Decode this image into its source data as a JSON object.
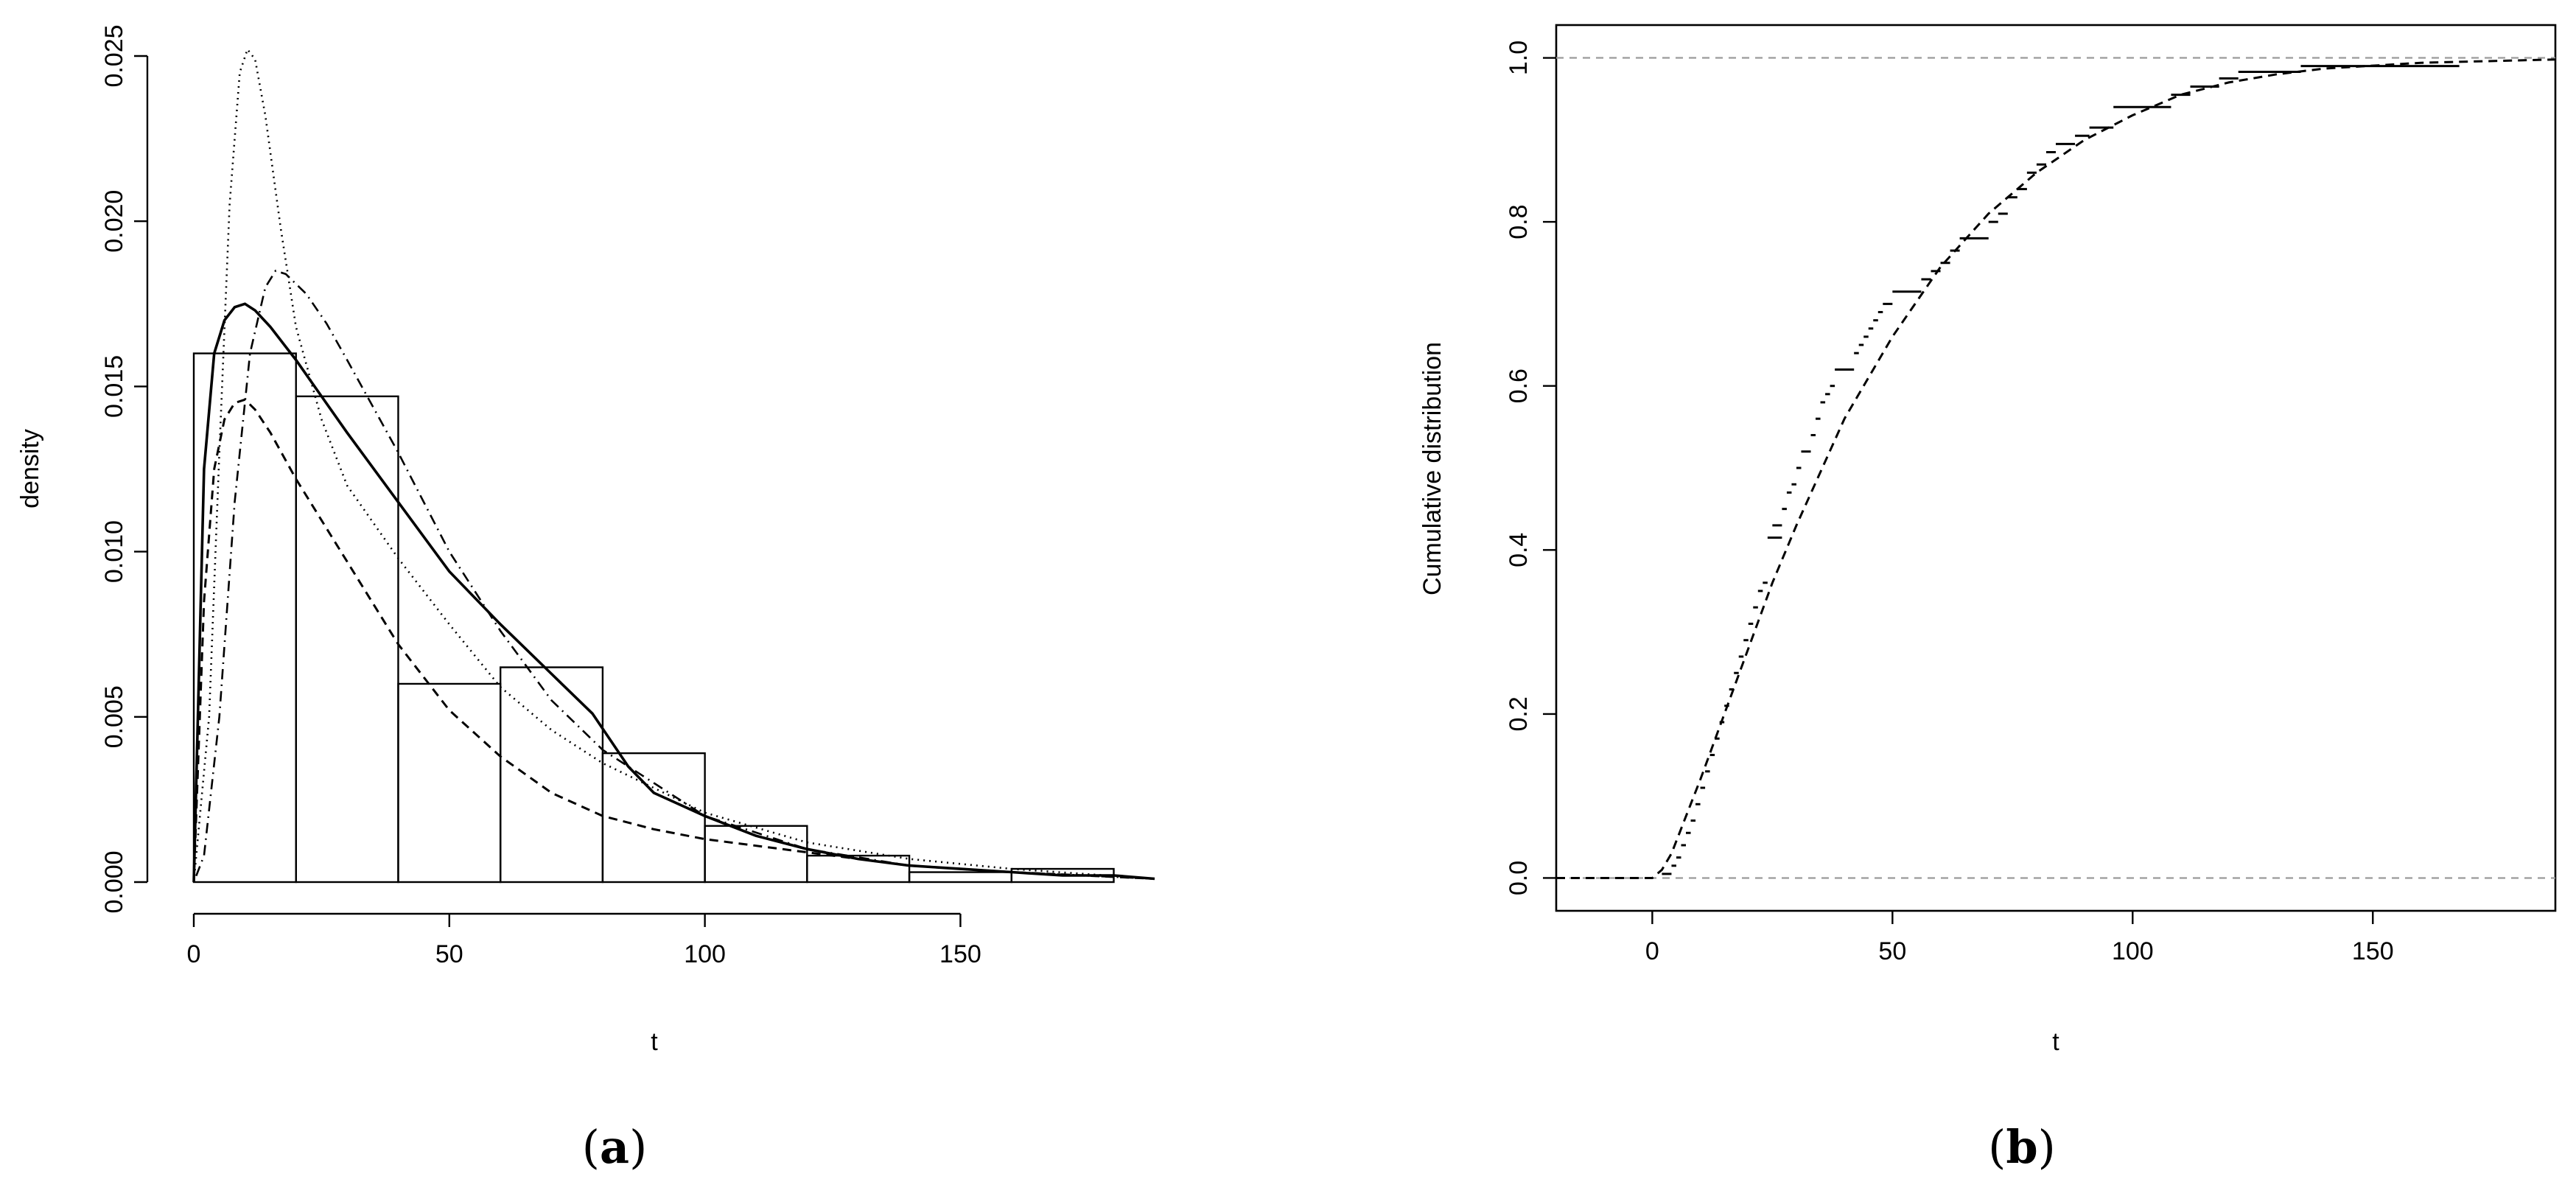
{
  "chart_data": [
    {
      "panel": "a",
      "type": "bar",
      "panel_label": "a",
      "xlabel": "t",
      "ylabel": "density",
      "xlim": [
        0,
        188
      ],
      "ylim": [
        0,
        0.025
      ],
      "x_ticks": [
        0,
        50,
        100,
        150
      ],
      "y_ticks": [
        0.0,
        0.005,
        0.01,
        0.015,
        0.02,
        0.025
      ],
      "y_tick_labels": [
        "0.000",
        "0.005",
        "0.010",
        "0.015",
        "0.020",
        "0.025"
      ],
      "histogram": {
        "bin_edges": [
          0,
          20,
          40,
          60,
          80,
          100,
          120,
          140,
          160,
          180
        ],
        "densities": [
          0.016,
          0.0147,
          0.006,
          0.0065,
          0.0039,
          0.0017,
          0.0008,
          0.0003,
          0.0004
        ]
      },
      "series": [
        {
          "style": "solid",
          "x": [
            0,
            2,
            4,
            6,
            8,
            10,
            12,
            15,
            20,
            25,
            30,
            40,
            50,
            60,
            70,
            78,
            85,
            90,
            100,
            110,
            120,
            130,
            140,
            150,
            160,
            170,
            180,
            188
          ],
          "y": [
            0.0,
            0.0125,
            0.016,
            0.017,
            0.0174,
            0.0175,
            0.0173,
            0.0168,
            0.0158,
            0.0147,
            0.0136,
            0.0115,
            0.0094,
            0.0078,
            0.0063,
            0.0051,
            0.0035,
            0.0027,
            0.002,
            0.0014,
            0.001,
            0.0007,
            0.0005,
            0.0004,
            0.0003,
            0.0002,
            0.0002,
            0.0001
          ]
        },
        {
          "style": "dashed",
          "x": [
            0,
            2,
            4,
            6,
            8,
            10,
            12,
            15,
            20,
            30,
            40,
            50,
            60,
            70,
            80,
            90,
            100,
            120,
            140,
            160,
            188
          ],
          "y": [
            0.0,
            0.0085,
            0.0125,
            0.014,
            0.0145,
            0.0146,
            0.0143,
            0.0136,
            0.0122,
            0.0097,
            0.0072,
            0.0052,
            0.0038,
            0.0027,
            0.002,
            0.0016,
            0.0013,
            0.0009,
            0.0005,
            0.0003,
            0.0001
          ]
        },
        {
          "style": "dotted",
          "x": [
            0,
            3,
            5,
            7,
            9,
            10.5,
            12,
            14,
            17,
            20,
            25,
            30,
            40,
            50,
            60,
            70,
            80,
            100,
            120,
            140,
            160,
            188
          ],
          "y": [
            0.0,
            0.005,
            0.013,
            0.0205,
            0.0245,
            0.0252,
            0.0249,
            0.0232,
            0.0198,
            0.0168,
            0.014,
            0.012,
            0.0098,
            0.0078,
            0.0059,
            0.0046,
            0.0036,
            0.0021,
            0.0012,
            0.0007,
            0.0004,
            0.0001
          ]
        },
        {
          "style": "dotdash",
          "x": [
            0,
            2,
            5,
            8,
            11,
            14,
            16,
            18,
            22,
            26,
            30,
            40,
            50,
            60,
            70,
            80,
            90,
            100,
            120,
            140,
            160,
            188
          ],
          "y": [
            0.0,
            0.0008,
            0.005,
            0.0115,
            0.016,
            0.018,
            0.0185,
            0.0184,
            0.0178,
            0.0169,
            0.0158,
            0.013,
            0.01,
            0.0076,
            0.0055,
            0.004,
            0.003,
            0.002,
            0.001,
            0.0005,
            0.0003,
            0.0001
          ]
        }
      ]
    },
    {
      "panel": "b",
      "type": "line",
      "panel_label": "b",
      "xlabel": "t",
      "ylabel": "Cumulative distribution",
      "xlim": [
        -20,
        188
      ],
      "ylim": [
        -0.04,
        1.04
      ],
      "x_ticks": [
        0,
        50,
        100,
        150
      ],
      "y_ticks": [
        0.0,
        0.2,
        0.4,
        0.6,
        0.8,
        1.0
      ],
      "y_tick_labels": [
        "0.0",
        "0.2",
        "0.4",
        "0.6",
        "0.8",
        "1.0"
      ],
      "reference_lines": [
        0.0,
        1.0
      ],
      "series": [
        {
          "style": "dashed",
          "x": [
            -20,
            0,
            2,
            4,
            6,
            8,
            10,
            15,
            20,
            25,
            30,
            40,
            50,
            60,
            70,
            80,
            90,
            100,
            110,
            120,
            130,
            140,
            160,
            188
          ],
          "y": [
            0.0,
            0.0,
            0.01,
            0.03,
            0.06,
            0.09,
            0.12,
            0.2,
            0.28,
            0.36,
            0.43,
            0.56,
            0.66,
            0.745,
            0.81,
            0.86,
            0.9,
            0.93,
            0.955,
            0.97,
            0.98,
            0.987,
            0.994,
            0.998
          ]
        }
      ],
      "ecdf_steps": [
        [
          2,
          4,
          0.005
        ],
        [
          4,
          5,
          0.015
        ],
        [
          5,
          6,
          0.025
        ],
        [
          6,
          7,
          0.04
        ],
        [
          7,
          8,
          0.055
        ],
        [
          8,
          9,
          0.07
        ],
        [
          9,
          10,
          0.09
        ],
        [
          10,
          11,
          0.11
        ],
        [
          11,
          12,
          0.13
        ],
        [
          12,
          13,
          0.15
        ],
        [
          13,
          14,
          0.17
        ],
        [
          14,
          15,
          0.19
        ],
        [
          15,
          16,
          0.21
        ],
        [
          16,
          17,
          0.23
        ],
        [
          17,
          18,
          0.25
        ],
        [
          18,
          19,
          0.27
        ],
        [
          19,
          20,
          0.29
        ],
        [
          20,
          21,
          0.31
        ],
        [
          21,
          22,
          0.33
        ],
        [
          22,
          23,
          0.35
        ],
        [
          23,
          24,
          0.36
        ],
        [
          24,
          27,
          0.415
        ],
        [
          25,
          27,
          0.43
        ],
        [
          27,
          28,
          0.45
        ],
        [
          28,
          29,
          0.47
        ],
        [
          29,
          30,
          0.48
        ],
        [
          30,
          31,
          0.5
        ],
        [
          31,
          33,
          0.52
        ],
        [
          33,
          34,
          0.54
        ],
        [
          34,
          35,
          0.56
        ],
        [
          35,
          36,
          0.58
        ],
        [
          36,
          37,
          0.59
        ],
        [
          37,
          38,
          0.6
        ],
        [
          38,
          42,
          0.62
        ],
        [
          42,
          43,
          0.64
        ],
        [
          43,
          44,
          0.65
        ],
        [
          44,
          45,
          0.66
        ],
        [
          45,
          46,
          0.67
        ],
        [
          46,
          47,
          0.68
        ],
        [
          47,
          48,
          0.69
        ],
        [
          48,
          50,
          0.7
        ],
        [
          50,
          56,
          0.715
        ],
        [
          56,
          58,
          0.73
        ],
        [
          58,
          60,
          0.74
        ],
        [
          60,
          62,
          0.75
        ],
        [
          62,
          64,
          0.765
        ],
        [
          64,
          70,
          0.78
        ],
        [
          70,
          72,
          0.8
        ],
        [
          72,
          74,
          0.81
        ],
        [
          74,
          76,
          0.83
        ],
        [
          76,
          78,
          0.84
        ],
        [
          78,
          80,
          0.86
        ],
        [
          80,
          82,
          0.87
        ],
        [
          82,
          84,
          0.885
        ],
        [
          84,
          88,
          0.895
        ],
        [
          88,
          91,
          0.905
        ],
        [
          91,
          96,
          0.915
        ],
        [
          96,
          108,
          0.94
        ],
        [
          108,
          112,
          0.955
        ],
        [
          112,
          118,
          0.965
        ],
        [
          118,
          122,
          0.975
        ],
        [
          122,
          135,
          0.983
        ],
        [
          135,
          168,
          0.99
        ]
      ]
    }
  ]
}
